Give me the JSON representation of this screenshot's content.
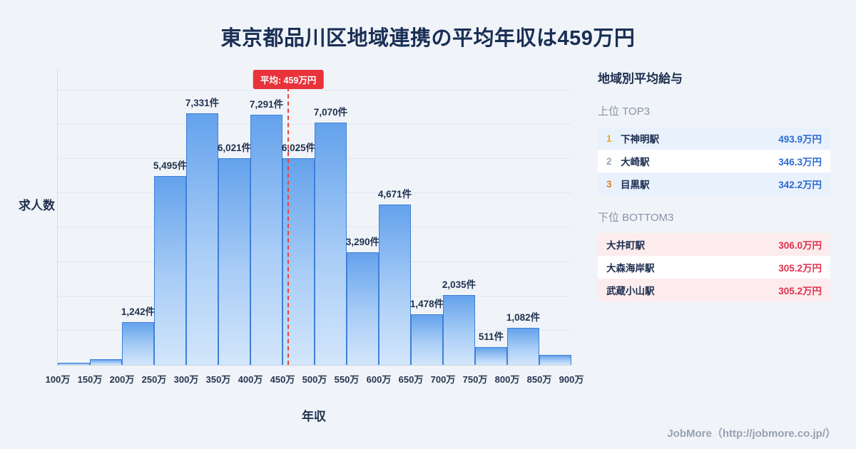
{
  "page": {
    "title": "東京都品川区地域連携の平均年収は459万円",
    "footer": "JobMore（http://jobmore.co.jp/）",
    "background": "#f0f4f9"
  },
  "chart_data": {
    "type": "bar",
    "title": "東京都品川区地域連携の平均年収は459万円",
    "xlabel": "年収",
    "ylabel": "求人数",
    "categories": [
      "100万",
      "150万",
      "200万",
      "250万",
      "300万",
      "350万",
      "400万",
      "450万",
      "500万",
      "550万",
      "600万",
      "650万",
      "700万",
      "750万",
      "800万",
      "850万",
      "900万"
    ],
    "values": [
      60,
      160,
      1242,
      5495,
      7331,
      6021,
      7291,
      6025,
      7070,
      3290,
      4671,
      1478,
      2035,
      511,
      1082,
      290
    ],
    "bar_labels": [
      "",
      "",
      "1,242件",
      "5,495件",
      "7,331件",
      "6,021件",
      "7,291件",
      "6,025件",
      "7,070件",
      "3,290件",
      "4,671件",
      "1,478件",
      "2,035件",
      "511件",
      "1,082件",
      ""
    ],
    "ylim": [
      0,
      8600
    ],
    "x_range_man_yen": [
      100,
      900
    ],
    "grid": "horizontal, every 1000",
    "average_line": {
      "value": 459,
      "label": "平均: 459万円",
      "color": "#e8453c"
    },
    "bar_fill_top": "#64a2ec",
    "bar_fill_bottom": "#d3e6fb",
    "bar_border": "#3e7fd8"
  },
  "sidebar": {
    "title": "地域別平均給与",
    "top_section": {
      "label": "上位 TOP3",
      "rows": [
        {
          "rank": "1",
          "name": "下神明駅",
          "value": "493.9万円"
        },
        {
          "rank": "2",
          "name": "大崎駅",
          "value": "346.3万円"
        },
        {
          "rank": "3",
          "name": "目黒駅",
          "value": "342.2万円"
        }
      ]
    },
    "bottom_section": {
      "label": "下位 BOTTOM3",
      "rows": [
        {
          "name": "大井町駅",
          "value": "306.0万円"
        },
        {
          "name": "大森海岸駅",
          "value": "305.2万円"
        },
        {
          "name": "武蔵小山駅",
          "value": "305.2万円"
        }
      ]
    }
  }
}
